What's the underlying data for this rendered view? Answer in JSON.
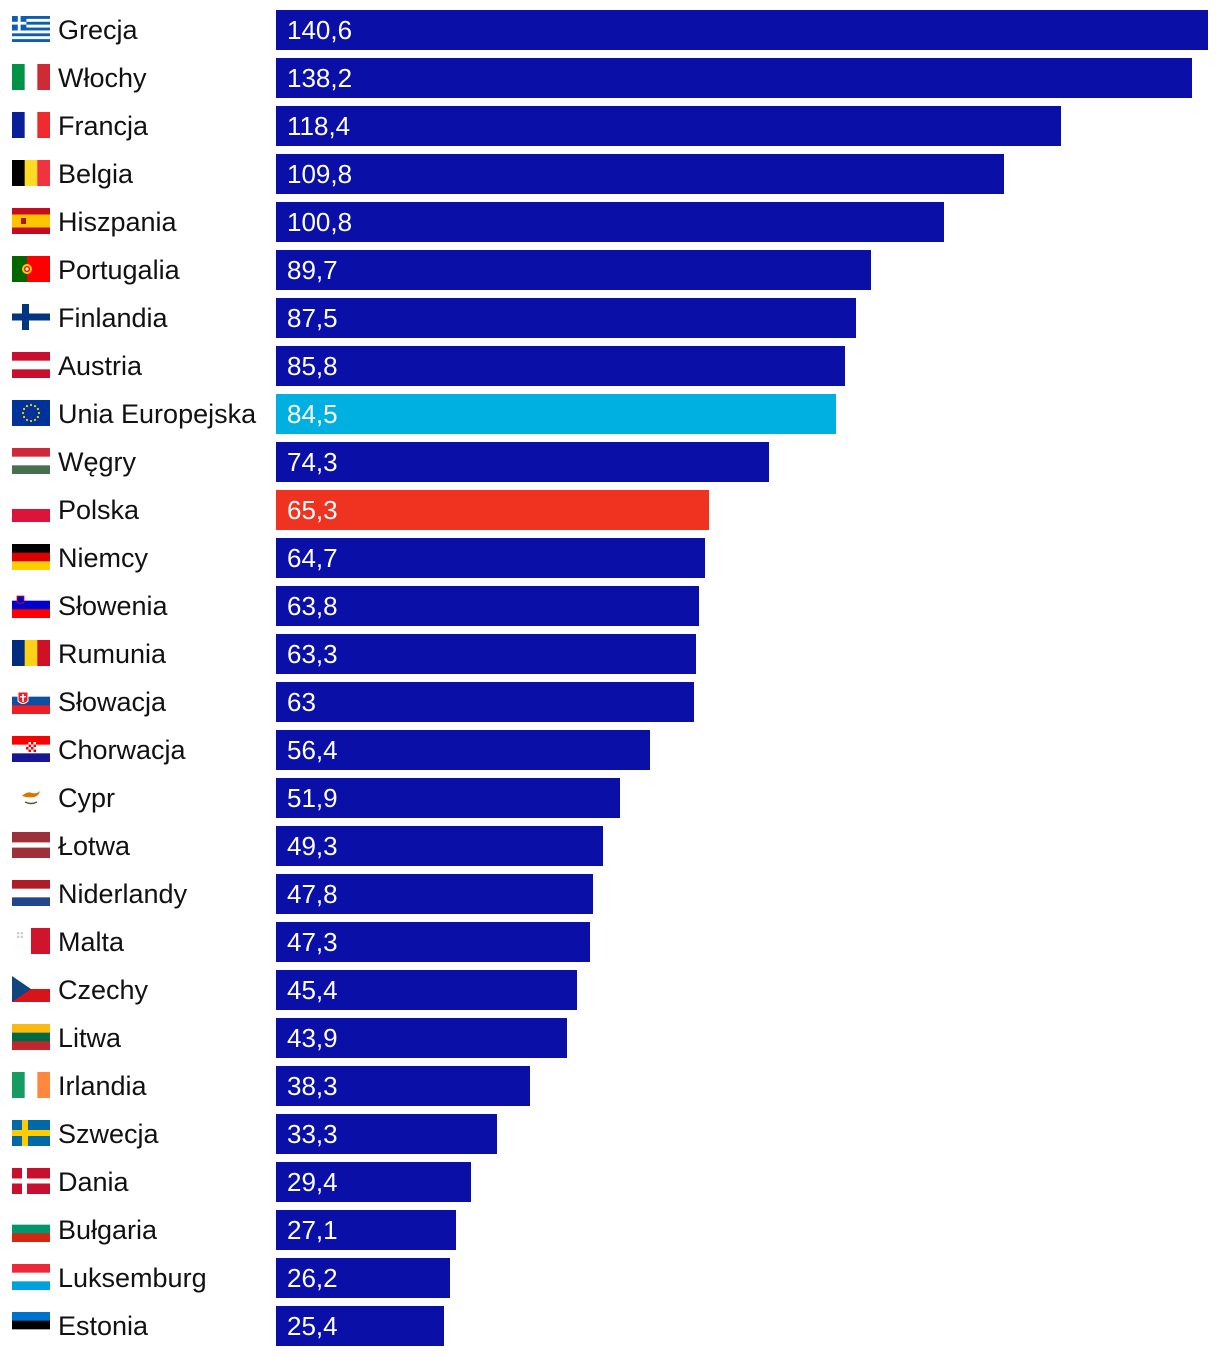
{
  "chart_data": {
    "type": "bar",
    "orientation": "horizontal",
    "title": "",
    "xlabel": "",
    "ylabel": "",
    "xlim": [
      0,
      140.6
    ],
    "grid": false,
    "colors": {
      "default": "#0a0fa8",
      "eu": "#00b0e0",
      "highlight": "#f03320"
    },
    "categories": [
      "Grecja",
      "Włochy",
      "Francja",
      "Belgia",
      "Hiszpania",
      "Portugalia",
      "Finlandia",
      "Austria",
      "Unia Europejska",
      "Węgry",
      "Polska",
      "Niemcy",
      "Słowenia",
      "Rumunia",
      "Słowacja",
      "Chorwacja",
      "Cypr",
      "Łotwa",
      "Niderlandy",
      "Malta",
      "Czechy",
      "Litwa",
      "Irlandia",
      "Szwecja",
      "Dania",
      "Bułgaria",
      "Luksemburg",
      "Estonia"
    ],
    "values": [
      140.6,
      138.2,
      118.4,
      109.8,
      100.8,
      89.7,
      87.5,
      85.8,
      84.5,
      74.3,
      65.3,
      64.7,
      63.8,
      63.3,
      63,
      56.4,
      51.9,
      49.3,
      47.8,
      47.3,
      45.4,
      43.9,
      38.3,
      33.3,
      29.4,
      27.1,
      26.2,
      25.4
    ],
    "value_labels": [
      "140,6",
      "138,2",
      "118,4",
      "109,8",
      "100,8",
      "89,7",
      "87,5",
      "85,8",
      "84,5",
      "74,3",
      "65,3",
      "64,7",
      "63,8",
      "63,3",
      "63",
      "56,4",
      "51,9",
      "49,3",
      "47,8",
      "47,3",
      "45,4",
      "43,9",
      "38,3",
      "33,3",
      "29,4",
      "27,1",
      "26,2",
      "25,4"
    ],
    "bar_colors": [
      "default",
      "default",
      "default",
      "default",
      "default",
      "default",
      "default",
      "default",
      "eu",
      "default",
      "highlight",
      "default",
      "default",
      "default",
      "default",
      "default",
      "default",
      "default",
      "default",
      "default",
      "default",
      "default",
      "default",
      "default",
      "default",
      "default",
      "default",
      "default"
    ],
    "flag_icons": [
      "greece-flag-icon",
      "italy-flag-icon",
      "france-flag-icon",
      "belgium-flag-icon",
      "spain-flag-icon",
      "portugal-flag-icon",
      "finland-flag-icon",
      "austria-flag-icon",
      "eu-flag-icon",
      "hungary-flag-icon",
      "poland-flag-icon",
      "germany-flag-icon",
      "slovenia-flag-icon",
      "romania-flag-icon",
      "slovakia-flag-icon",
      "croatia-flag-icon",
      "cyprus-flag-icon",
      "latvia-flag-icon",
      "netherlands-flag-icon",
      "malta-flag-icon",
      "czechia-flag-icon",
      "lithuania-flag-icon",
      "ireland-flag-icon",
      "sweden-flag-icon",
      "denmark-flag-icon",
      "bulgaria-flag-icon",
      "luxembourg-flag-icon",
      "estonia-flag-icon"
    ]
  }
}
